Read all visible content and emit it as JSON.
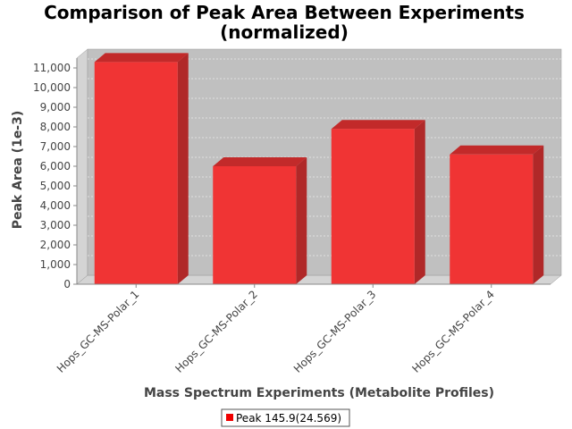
{
  "chart_data": {
    "type": "bar",
    "title_lines": [
      "Comparison of Peak Area Between Experiments",
      "(normalized)"
    ],
    "xlabel": "Mass Spectrum Experiments (Metabolite Profiles)",
    "ylabel": "Peak Area (1e-3)",
    "categories": [
      "Hops_GC-MS-Polar_1",
      "Hops_GC-MS-Polar_2",
      "Hops_GC-MS-Polar_3",
      "Hops_GC-MS-Polar_4"
    ],
    "series": [
      {
        "name": "Peak 145.9(24.569)",
        "values": [
          11300,
          6000,
          7900,
          6600
        ]
      }
    ],
    "ylim": [
      0,
      11500
    ],
    "yticks": [
      0,
      1000,
      2000,
      3000,
      4000,
      5000,
      6000,
      7000,
      8000,
      9000,
      10000,
      11000
    ],
    "ytick_labels": [
      "0",
      "1,000",
      "2,000",
      "3,000",
      "4,000",
      "5,000",
      "6,000",
      "7,000",
      "8,000",
      "9,000",
      "10,000",
      "11,000"
    ],
    "grid": true,
    "legend_position": "bottom",
    "colors": {
      "bar_front": "#f03434",
      "bar_top": "#c22a2a",
      "bar_side": "#b02828",
      "plot_background": "#c0c0c0",
      "plot_wall": "#d4d4d4",
      "gridline": "#ffffff"
    }
  }
}
